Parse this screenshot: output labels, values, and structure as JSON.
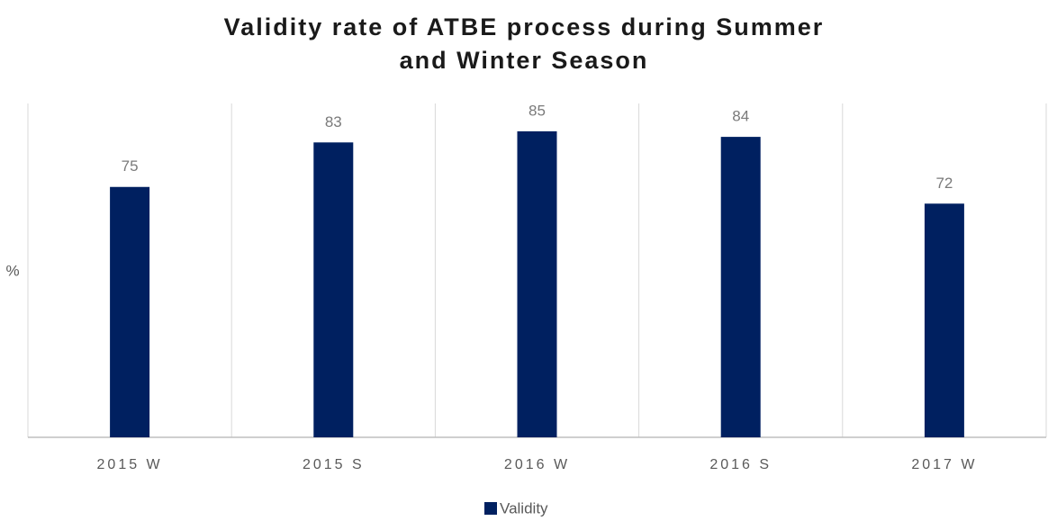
{
  "chart_data": {
    "type": "bar",
    "title": "Validity rate of ATBE process during Summer and Winter Season",
    "ylabel": "%",
    "categories": [
      "2015 W",
      "2015 S",
      "2016 W",
      "2016 S",
      "2017 W"
    ],
    "series": [
      {
        "name": "Validity",
        "color": "#002060",
        "values": [
          75,
          83,
          85,
          84,
          72
        ]
      }
    ],
    "ylim": [
      30,
      90
    ],
    "legend": "bottom"
  }
}
